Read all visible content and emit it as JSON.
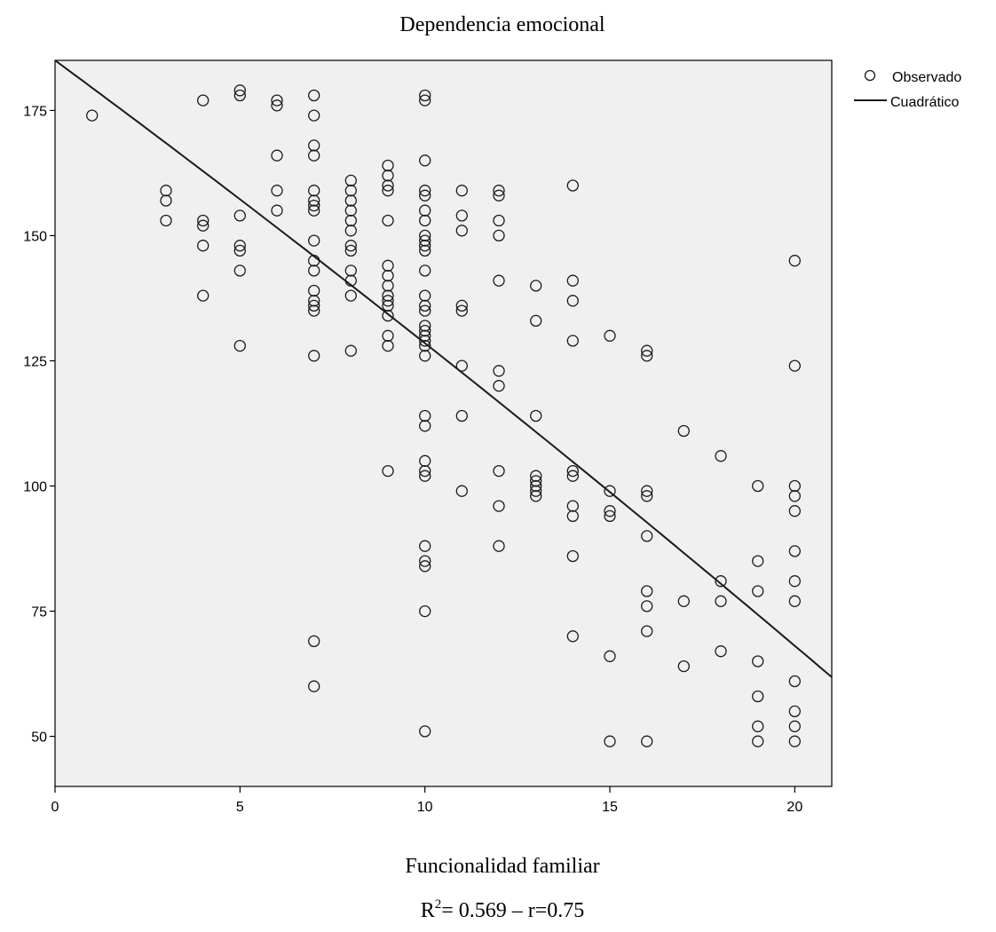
{
  "chart_data": {
    "type": "scatter",
    "title": "Dependencia emocional",
    "xlabel": "Funcionalidad familiar",
    "ylabel": "",
    "caption": {
      "r2_base": "R",
      "r2_sup": "2",
      "r2_rest": "= 0.569 – r=0.75"
    },
    "xlim": [
      0,
      21
    ],
    "ylim": [
      40,
      185
    ],
    "xticks": [
      0,
      5,
      10,
      15,
      20
    ],
    "yticks": [
      50,
      75,
      100,
      125,
      150,
      175
    ],
    "grid": false,
    "legend_position": "top-right",
    "legend": {
      "observed": "Observado",
      "fit": "Cuadrático"
    },
    "colors": {
      "plot_bg": "#f0f0f0",
      "marker": "#1a1a1a",
      "fit_line": "#1a1a1a"
    },
    "series": [
      {
        "name": "Observado",
        "points": [
          [
            1,
            174
          ],
          [
            3,
            159
          ],
          [
            3,
            157
          ],
          [
            3,
            153
          ],
          [
            4,
            177
          ],
          [
            4,
            153
          ],
          [
            4,
            152
          ],
          [
            4,
            148
          ],
          [
            4,
            138
          ],
          [
            5,
            179
          ],
          [
            5,
            178
          ],
          [
            5,
            154
          ],
          [
            5,
            148
          ],
          [
            5,
            147
          ],
          [
            5,
            143
          ],
          [
            5,
            128
          ],
          [
            6,
            177
          ],
          [
            6,
            176
          ],
          [
            6,
            166
          ],
          [
            6,
            159
          ],
          [
            6,
            155
          ],
          [
            7,
            178
          ],
          [
            7,
            174
          ],
          [
            7,
            168
          ],
          [
            7,
            166
          ],
          [
            7,
            159
          ],
          [
            7,
            157
          ],
          [
            7,
            156
          ],
          [
            7,
            155
          ],
          [
            7,
            149
          ],
          [
            7,
            145
          ],
          [
            7,
            143
          ],
          [
            7,
            139
          ],
          [
            7,
            137
          ],
          [
            7,
            136
          ],
          [
            7,
            135
          ],
          [
            7,
            126
          ],
          [
            7,
            69
          ],
          [
            7,
            60
          ],
          [
            8,
            161
          ],
          [
            8,
            159
          ],
          [
            8,
            157
          ],
          [
            8,
            155
          ],
          [
            8,
            153
          ],
          [
            8,
            151
          ],
          [
            8,
            148
          ],
          [
            8,
            147
          ],
          [
            8,
            143
          ],
          [
            8,
            141
          ],
          [
            8,
            138
          ],
          [
            8,
            127
          ],
          [
            9,
            164
          ],
          [
            9,
            162
          ],
          [
            9,
            160
          ],
          [
            9,
            159
          ],
          [
            9,
            153
          ],
          [
            9,
            144
          ],
          [
            9,
            142
          ],
          [
            9,
            140
          ],
          [
            9,
            138
          ],
          [
            9,
            137
          ],
          [
            9,
            136
          ],
          [
            9,
            134
          ],
          [
            9,
            130
          ],
          [
            9,
            128
          ],
          [
            9,
            103
          ],
          [
            10,
            178
          ],
          [
            10,
            177
          ],
          [
            10,
            165
          ],
          [
            10,
            159
          ],
          [
            10,
            158
          ],
          [
            10,
            155
          ],
          [
            10,
            153
          ],
          [
            10,
            150
          ],
          [
            10,
            149
          ],
          [
            10,
            148
          ],
          [
            10,
            147
          ],
          [
            10,
            143
          ],
          [
            10,
            138
          ],
          [
            10,
            136
          ],
          [
            10,
            135
          ],
          [
            10,
            132
          ],
          [
            10,
            131
          ],
          [
            10,
            130
          ],
          [
            10,
            129
          ],
          [
            10,
            128
          ],
          [
            10,
            126
          ],
          [
            10,
            114
          ],
          [
            10,
            112
          ],
          [
            10,
            105
          ],
          [
            10,
            103
          ],
          [
            10,
            102
          ],
          [
            10,
            88
          ],
          [
            10,
            85
          ],
          [
            10,
            84
          ],
          [
            10,
            75
          ],
          [
            10,
            51
          ],
          [
            11,
            159
          ],
          [
            11,
            154
          ],
          [
            11,
            151
          ],
          [
            11,
            136
          ],
          [
            11,
            135
          ],
          [
            11,
            124
          ],
          [
            11,
            114
          ],
          [
            11,
            99
          ],
          [
            12,
            159
          ],
          [
            12,
            158
          ],
          [
            12,
            153
          ],
          [
            12,
            150
          ],
          [
            12,
            141
          ],
          [
            12,
            123
          ],
          [
            12,
            120
          ],
          [
            12,
            103
          ],
          [
            12,
            96
          ],
          [
            12,
            88
          ],
          [
            13,
            140
          ],
          [
            13,
            133
          ],
          [
            13,
            114
          ],
          [
            13,
            102
          ],
          [
            13,
            101
          ],
          [
            13,
            100
          ],
          [
            13,
            99
          ],
          [
            13,
            98
          ],
          [
            14,
            160
          ],
          [
            14,
            141
          ],
          [
            14,
            137
          ],
          [
            14,
            129
          ],
          [
            14,
            103
          ],
          [
            14,
            102
          ],
          [
            14,
            96
          ],
          [
            14,
            94
          ],
          [
            14,
            86
          ],
          [
            14,
            70
          ],
          [
            15,
            130
          ],
          [
            15,
            99
          ],
          [
            15,
            95
          ],
          [
            15,
            94
          ],
          [
            15,
            66
          ],
          [
            15,
            49
          ],
          [
            16,
            127
          ],
          [
            16,
            126
          ],
          [
            16,
            99
          ],
          [
            16,
            98
          ],
          [
            16,
            90
          ],
          [
            16,
            79
          ],
          [
            16,
            76
          ],
          [
            16,
            71
          ],
          [
            16,
            49
          ],
          [
            17,
            111
          ],
          [
            17,
            77
          ],
          [
            17,
            64
          ],
          [
            18,
            106
          ],
          [
            18,
            81
          ],
          [
            18,
            77
          ],
          [
            18,
            67
          ],
          [
            19,
            100
          ],
          [
            19,
            85
          ],
          [
            19,
            79
          ],
          [
            19,
            65
          ],
          [
            19,
            58
          ],
          [
            19,
            52
          ],
          [
            19,
            49
          ],
          [
            20,
            145
          ],
          [
            20,
            124
          ],
          [
            20,
            100
          ],
          [
            20,
            98
          ],
          [
            20,
            95
          ],
          [
            20,
            87
          ],
          [
            20,
            81
          ],
          [
            20,
            77
          ],
          [
            20,
            61
          ],
          [
            20,
            55
          ],
          [
            20,
            52
          ],
          [
            20,
            49
          ]
        ]
      }
    ],
    "fit": {
      "name": "Cuadrático",
      "model": "quadratic",
      "coefficients": {
        "b0": 185,
        "b1": -5.45,
        "b2": -0.0198
      },
      "x_range": [
        0,
        21
      ]
    }
  }
}
